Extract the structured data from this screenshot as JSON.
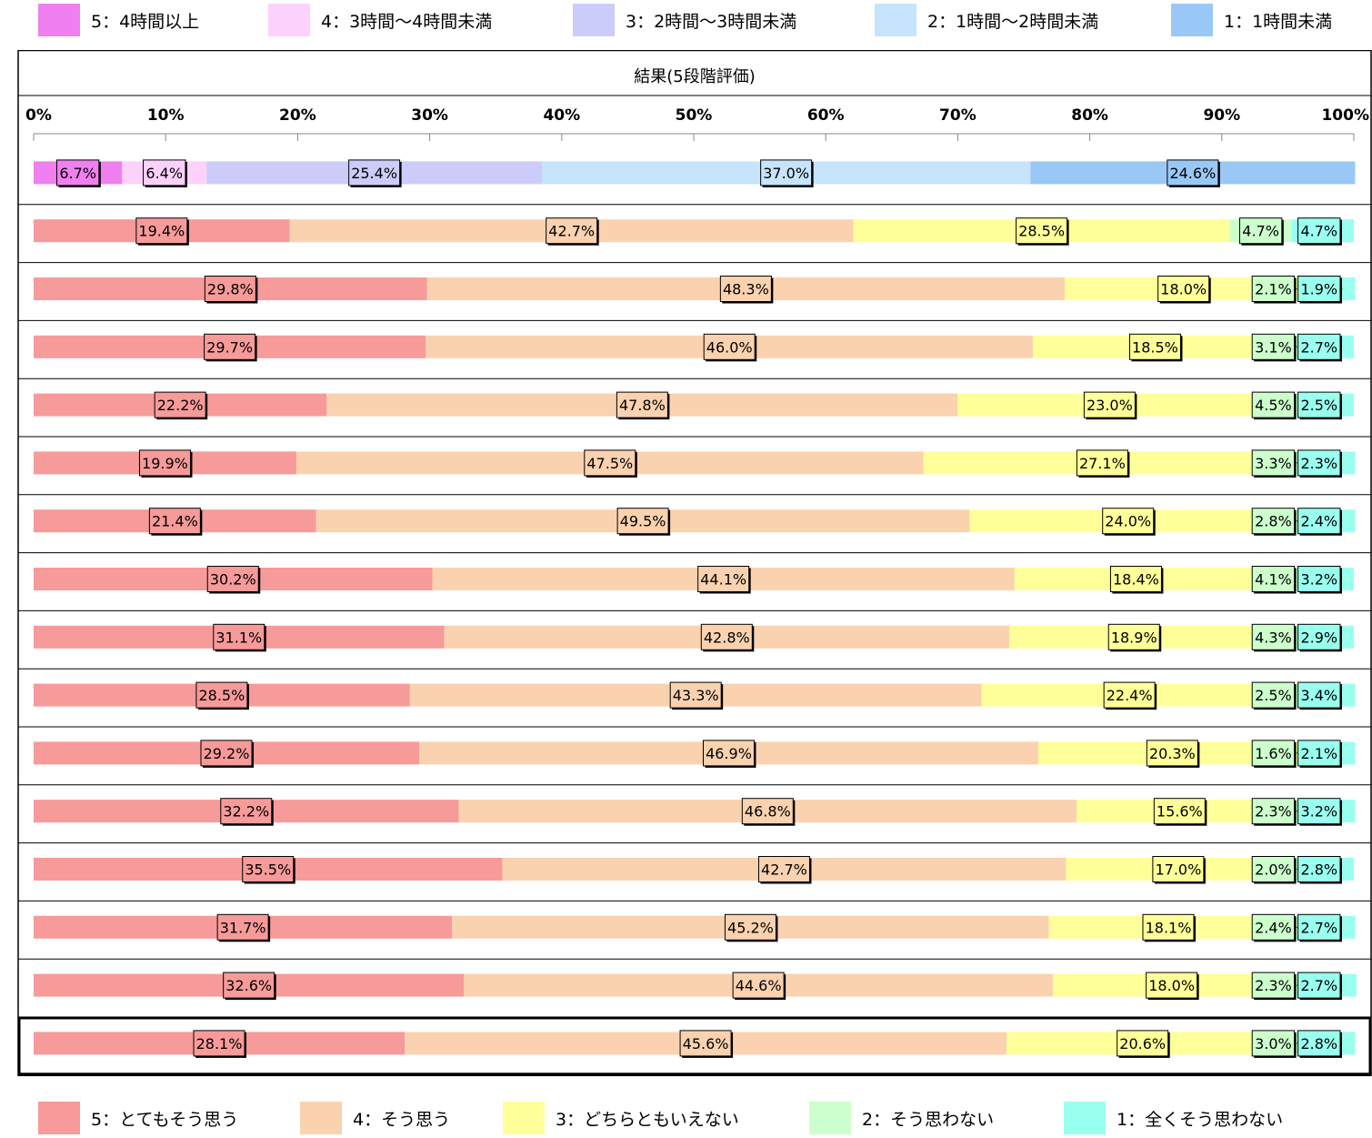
{
  "legend_top": [
    {
      "label": "5：4時間以上",
      "color": "#F07FF0"
    },
    {
      "label": "4：3時間～4時間未満",
      "color": "#FCD2FC"
    },
    {
      "label": "3：2時間～3時間未満",
      "color": "#CCCCFA"
    },
    {
      "label": "2：1時間～2時間未満",
      "color": "#C6E4FB"
    },
    {
      "label": "1：1時間未満",
      "color": "#99C8F6"
    }
  ],
  "legend_bottom": [
    {
      "label": "5：とてもそう思う",
      "color": "#F79A9A"
    },
    {
      "label": "4：そう思う",
      "color": "#FAD2B0"
    },
    {
      "label": "3：どちらともいえない",
      "color": "#FFFF99"
    },
    {
      "label": "2：そう思わない",
      "color": "#CCFFCC"
    },
    {
      "label": "1：全くそう思わない",
      "color": "#99FFEE"
    }
  ],
  "chart_data": {
    "type": "bar",
    "orientation": "horizontal",
    "stacked": true,
    "title": "結果(5段階評価)",
    "xlim": [
      0,
      100
    ],
    "ticks": [
      "0%",
      "10%",
      "20%",
      "30%",
      "40%",
      "50%",
      "60%",
      "70%",
      "80%",
      "90%",
      "100%"
    ],
    "rows": [
      {
        "values": [
          6.7,
          6.4,
          25.4,
          37.0,
          24.6
        ],
        "labels": [
          "6.7%",
          "6.4%",
          "25.4%",
          "37.0%",
          "24.6%"
        ],
        "palette": "top"
      },
      {
        "values": [
          19.4,
          42.7,
          28.5,
          4.7,
          4.7
        ],
        "labels": [
          "19.4%",
          "42.7%",
          "28.5%",
          "4.7%",
          "4.7%"
        ],
        "palette": "bottom"
      },
      {
        "values": [
          29.8,
          48.3,
          18.0,
          2.1,
          1.9
        ],
        "labels": [
          "29.8%",
          "48.3%",
          "18.0%",
          "2.1%",
          "1.9%"
        ],
        "palette": "bottom"
      },
      {
        "values": [
          29.7,
          46.0,
          18.5,
          3.1,
          2.7
        ],
        "labels": [
          "29.7%",
          "46.0%",
          "18.5%",
          "3.1%",
          "2.7%"
        ],
        "palette": "bottom"
      },
      {
        "values": [
          22.2,
          47.8,
          23.0,
          4.5,
          2.5
        ],
        "labels": [
          "22.2%",
          "47.8%",
          "23.0%",
          "4.5%",
          "2.5%"
        ],
        "palette": "bottom"
      },
      {
        "values": [
          19.9,
          47.5,
          27.1,
          3.3,
          2.3
        ],
        "labels": [
          "19.9%",
          "47.5%",
          "27.1%",
          "3.3%",
          "2.3%"
        ],
        "palette": "bottom"
      },
      {
        "values": [
          21.4,
          49.5,
          24.0,
          2.8,
          2.4
        ],
        "labels": [
          "21.4%",
          "49.5%",
          "24.0%",
          "2.8%",
          "2.4%"
        ],
        "palette": "bottom"
      },
      {
        "values": [
          30.2,
          44.1,
          18.4,
          4.1,
          3.2
        ],
        "labels": [
          "30.2%",
          "44.1%",
          "18.4%",
          "4.1%",
          "3.2%"
        ],
        "palette": "bottom"
      },
      {
        "values": [
          31.1,
          42.8,
          18.9,
          4.3,
          2.9
        ],
        "labels": [
          "31.1%",
          "42.8%",
          "18.9%",
          "4.3%",
          "2.9%"
        ],
        "palette": "bottom"
      },
      {
        "values": [
          28.5,
          43.3,
          22.4,
          2.5,
          3.4
        ],
        "labels": [
          "28.5%",
          "43.3%",
          "22.4%",
          "2.5%",
          "3.4%"
        ],
        "palette": "bottom"
      },
      {
        "values": [
          29.2,
          46.9,
          20.3,
          1.6,
          2.1
        ],
        "labels": [
          "29.2%",
          "46.9%",
          "20.3%",
          "1.6%",
          "2.1%"
        ],
        "palette": "bottom"
      },
      {
        "values": [
          32.2,
          46.8,
          15.6,
          2.3,
          3.2
        ],
        "labels": [
          "32.2%",
          "46.8%",
          "15.6%",
          "2.3%",
          "3.2%"
        ],
        "palette": "bottom"
      },
      {
        "values": [
          35.5,
          42.7,
          17.0,
          2.0,
          2.8
        ],
        "labels": [
          "35.5%",
          "42.7%",
          "17.0%",
          "2.0%",
          "2.8%"
        ],
        "palette": "bottom"
      },
      {
        "values": [
          31.7,
          45.2,
          18.1,
          2.4,
          2.7
        ],
        "labels": [
          "31.7%",
          "45.2%",
          "18.1%",
          "2.4%",
          "2.7%"
        ],
        "palette": "bottom"
      },
      {
        "values": [
          32.6,
          44.6,
          18.0,
          2.3,
          2.7
        ],
        "labels": [
          "32.6%",
          "44.6%",
          "18.0%",
          "2.3%",
          "2.7%"
        ],
        "palette": "bottom"
      },
      {
        "values": [
          28.1,
          45.6,
          20.6,
          3.0,
          2.8
        ],
        "labels": [
          "28.1%",
          "45.6%",
          "20.6%",
          "3.0%",
          "2.8%"
        ],
        "palette": "bottom",
        "highlight": true
      }
    ]
  }
}
